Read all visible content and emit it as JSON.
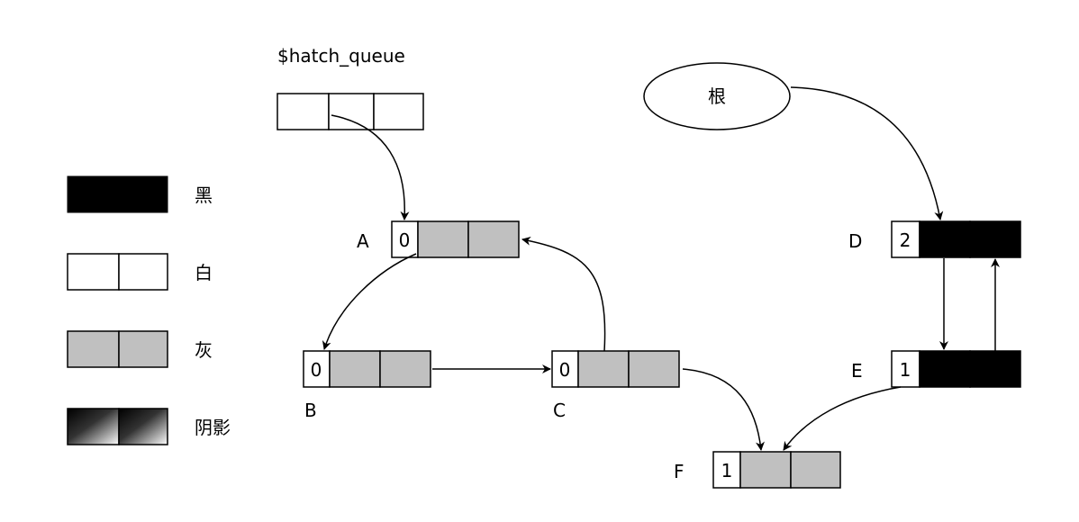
{
  "queue": {
    "title": "$hatch_queue"
  },
  "root": {
    "label": "根"
  },
  "legend": {
    "items": [
      {
        "key": "black",
        "label": "黑"
      },
      {
        "key": "white",
        "label": "白"
      },
      {
        "key": "gray",
        "label": "灰"
      },
      {
        "key": "shadow",
        "label": "阴影"
      }
    ]
  },
  "nodes": [
    {
      "id": "A",
      "label": "A",
      "count": "0",
      "color": "gray"
    },
    {
      "id": "B",
      "label": "B",
      "count": "0",
      "color": "gray"
    },
    {
      "id": "C",
      "label": "C",
      "count": "0",
      "color": "gray"
    },
    {
      "id": "D",
      "label": "D",
      "count": "2",
      "color": "black"
    },
    {
      "id": "E",
      "label": "E",
      "count": "1",
      "color": "black"
    },
    {
      "id": "F",
      "label": "F",
      "count": "1",
      "color": "gray"
    }
  ],
  "colors": {
    "black": "#000000",
    "white": "#ffffff",
    "gray": "#c0c0c0",
    "stroke": "#000000"
  }
}
